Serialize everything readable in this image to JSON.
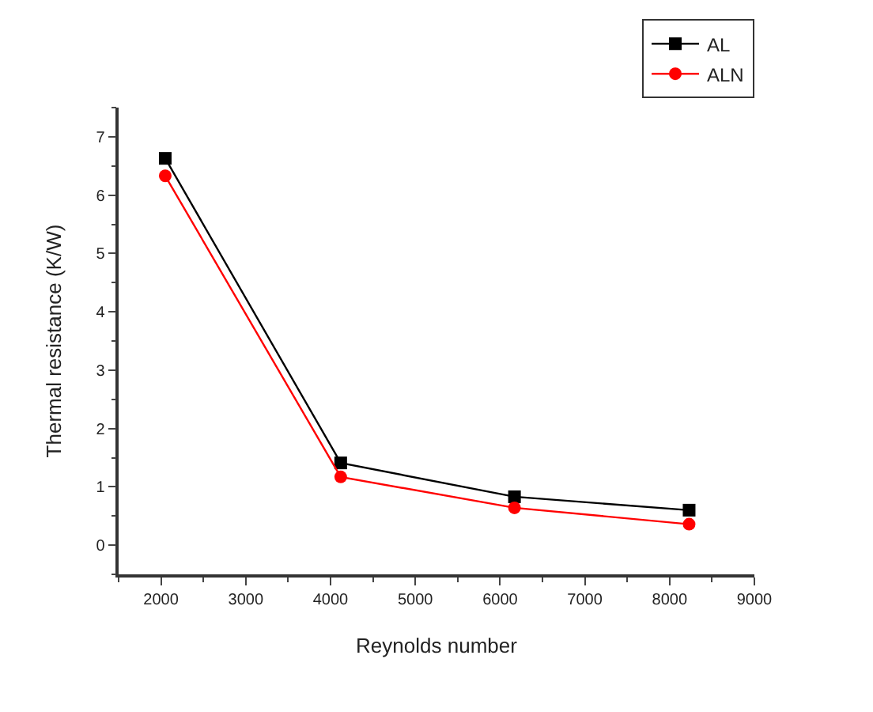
{
  "chart_data": {
    "type": "line",
    "xlabel": "Reynolds number",
    "ylabel": "Thermal resistance (K/W)",
    "x": [
      2050,
      4120,
      6170,
      8230
    ],
    "series": [
      {
        "name": "AL",
        "color": "#000000",
        "marker": "square",
        "values": [
          6.63,
          1.41,
          0.83,
          0.6
        ]
      },
      {
        "name": "ALN",
        "color": "#ff0000",
        "marker": "circle",
        "values": [
          6.33,
          1.17,
          0.64,
          0.36
        ]
      }
    ],
    "xlim": [
      1500,
      9000
    ],
    "xticks": [
      2000,
      3000,
      4000,
      5000,
      6000,
      7000,
      8000,
      9000
    ],
    "ylim": [
      -0.5,
      7.5
    ],
    "yticks": [
      0,
      1,
      2,
      3,
      4,
      5,
      6,
      7
    ],
    "grid": false,
    "legend": "top right",
    "line_style": "solid"
  }
}
